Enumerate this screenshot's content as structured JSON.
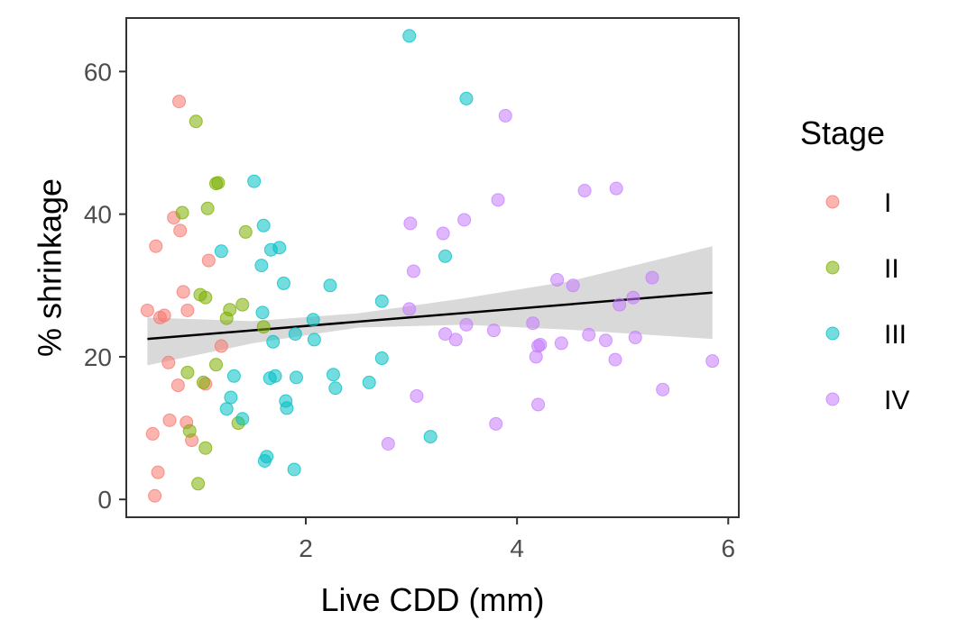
{
  "chart_data": {
    "type": "scatter",
    "xlabel": "Live CDD (mm)",
    "ylabel": "% shrinkage",
    "xlim": [
      0.3,
      6.1
    ],
    "ylim": [
      -2.5,
      67.5
    ],
    "xticks": [
      2,
      4,
      6
    ],
    "yticks": [
      0,
      20,
      40,
      60
    ],
    "grid": false,
    "legend": {
      "title": "Stage",
      "position": "right"
    },
    "series": [
      {
        "name": "I",
        "color": "#F8766D",
        "points": [
          [
            0.5,
            26.5
          ],
          [
            0.55,
            9.2
          ],
          [
            0.57,
            0.5
          ],
          [
            0.58,
            35.5
          ],
          [
            0.6,
            3.8
          ],
          [
            0.62,
            25.5
          ],
          [
            0.66,
            25.8
          ],
          [
            0.7,
            19.2
          ],
          [
            0.71,
            11.1
          ],
          [
            0.75,
            39.5
          ],
          [
            0.79,
            16.0
          ],
          [
            0.8,
            55.8
          ],
          [
            0.81,
            37.7
          ],
          [
            0.84,
            29.1
          ],
          [
            0.87,
            10.8
          ],
          [
            0.88,
            26.5
          ],
          [
            0.92,
            8.3
          ],
          [
            1.05,
            16.2
          ],
          [
            1.08,
            33.5
          ],
          [
            1.2,
            21.5
          ]
        ]
      },
      {
        "name": "II",
        "color": "#7CAE00",
        "points": [
          [
            0.83,
            40.2
          ],
          [
            0.88,
            17.8
          ],
          [
            0.9,
            9.6
          ],
          [
            0.96,
            53.0
          ],
          [
            0.98,
            2.2
          ],
          [
            1.0,
            28.7
          ],
          [
            1.03,
            16.4
          ],
          [
            1.05,
            7.2
          ],
          [
            1.05,
            28.3
          ],
          [
            1.07,
            40.8
          ],
          [
            1.15,
            18.9
          ],
          [
            1.15,
            44.3
          ],
          [
            1.17,
            44.4
          ],
          [
            1.25,
            25.4
          ],
          [
            1.28,
            26.6
          ],
          [
            1.36,
            10.7
          ],
          [
            1.4,
            27.3
          ],
          [
            1.43,
            37.5
          ],
          [
            1.6,
            24.2
          ]
        ]
      },
      {
        "name": "III",
        "color": "#00BFC4",
        "points": [
          [
            1.2,
            34.8
          ],
          [
            1.25,
            12.7
          ],
          [
            1.29,
            14.3
          ],
          [
            1.32,
            17.3
          ],
          [
            1.4,
            11.3
          ],
          [
            1.51,
            44.6
          ],
          [
            1.58,
            32.8
          ],
          [
            1.59,
            26.2
          ],
          [
            1.6,
            38.4
          ],
          [
            1.61,
            5.4
          ],
          [
            1.63,
            6.0
          ],
          [
            1.66,
            17.0
          ],
          [
            1.67,
            35.0
          ],
          [
            1.69,
            22.1
          ],
          [
            1.71,
            17.3
          ],
          [
            1.75,
            35.3
          ],
          [
            1.79,
            30.3
          ],
          [
            1.81,
            13.8
          ],
          [
            1.82,
            12.8
          ],
          [
            1.89,
            4.2
          ],
          [
            1.9,
            23.2
          ],
          [
            1.91,
            17.1
          ],
          [
            2.07,
            25.2
          ],
          [
            2.08,
            22.4
          ],
          [
            2.23,
            30.0
          ],
          [
            2.26,
            17.5
          ],
          [
            2.28,
            15.6
          ],
          [
            2.6,
            16.4
          ],
          [
            2.72,
            19.8
          ],
          [
            2.72,
            27.8
          ],
          [
            2.98,
            65.0
          ],
          [
            3.18,
            8.8
          ],
          [
            3.32,
            34.1
          ],
          [
            3.52,
            56.2
          ]
        ]
      },
      {
        "name": "IV",
        "color": "#C77CFF",
        "points": [
          [
            2.78,
            7.8
          ],
          [
            2.98,
            26.7
          ],
          [
            2.99,
            38.7
          ],
          [
            3.02,
            32.0
          ],
          [
            3.05,
            14.5
          ],
          [
            3.3,
            37.3
          ],
          [
            3.32,
            23.2
          ],
          [
            3.42,
            22.4
          ],
          [
            3.5,
            39.2
          ],
          [
            3.52,
            24.5
          ],
          [
            3.78,
            23.7
          ],
          [
            3.8,
            10.6
          ],
          [
            3.82,
            42.0
          ],
          [
            3.89,
            53.8
          ],
          [
            4.15,
            24.7
          ],
          [
            4.18,
            20.0
          ],
          [
            4.2,
            21.5
          ],
          [
            4.2,
            13.3
          ],
          [
            4.22,
            21.7
          ],
          [
            4.38,
            30.8
          ],
          [
            4.42,
            21.9
          ],
          [
            4.53,
            30.0
          ],
          [
            4.64,
            43.3
          ],
          [
            4.68,
            23.1
          ],
          [
            4.84,
            22.3
          ],
          [
            4.93,
            19.6
          ],
          [
            4.94,
            43.6
          ],
          [
            4.97,
            27.3
          ],
          [
            5.1,
            28.3
          ],
          [
            5.12,
            22.7
          ],
          [
            5.28,
            31.1
          ],
          [
            5.38,
            15.4
          ],
          [
            5.85,
            19.4
          ]
        ]
      }
    ],
    "trend": {
      "type": "linear",
      "color": "#000000",
      "band_color": "#d9d9d9",
      "line": [
        [
          0.5,
          22.5
        ],
        [
          5.85,
          29.0
        ]
      ],
      "band_upper": [
        [
          0.5,
          25.5
        ],
        [
          1.5,
          25.0
        ],
        [
          2.5,
          26.1
        ],
        [
          3.5,
          28.2
        ],
        [
          4.5,
          30.6
        ],
        [
          5.85,
          35.5
        ]
      ],
      "band_lower": [
        [
          0.5,
          18.8
        ],
        [
          1.5,
          21.9
        ],
        [
          2.5,
          24.1
        ],
        [
          3.5,
          24.5
        ],
        [
          4.5,
          23.8
        ],
        [
          5.85,
          22.5
        ]
      ]
    }
  }
}
